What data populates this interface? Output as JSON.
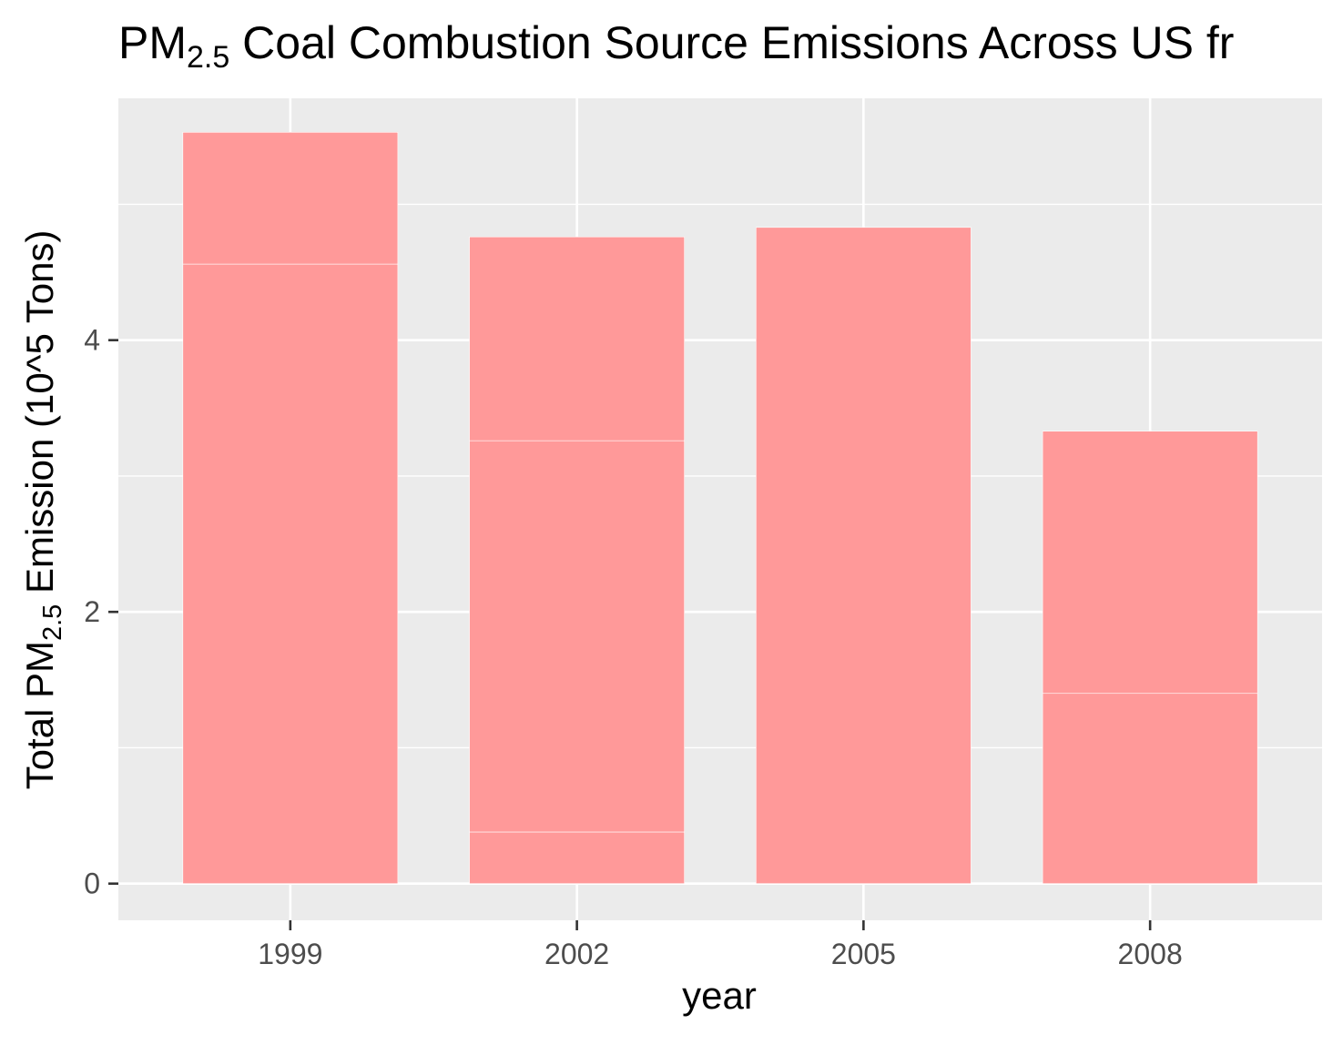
{
  "chart_data": {
    "type": "bar",
    "stacked": true,
    "title": {
      "prefix": "PM",
      "subscript": "2.5",
      "suffix": " Coal Combustion Source Emissions Across US fr"
    },
    "xlabel": "year",
    "ylabel": {
      "prefix": "Total PM",
      "subscript": "2.5",
      "suffix": " Emission (10^5 Tons)"
    },
    "categories": [
      "1999",
      "2002",
      "2005",
      "2008"
    ],
    "bar_color": "#ff9999",
    "panel_color": "#ebebeb",
    "grid": true,
    "ylim": [
      -0.27,
      5.78
    ],
    "y_ticks": [
      "0",
      "2",
      "4"
    ],
    "y_tick_values": [
      0,
      2,
      4
    ],
    "y_minor_tick_values": [
      1,
      3,
      5
    ],
    "stacks": [
      {
        "year": "1999",
        "segments": [
          4.56,
          0.97
        ]
      },
      {
        "year": "2002",
        "segments": [
          0.38,
          2.88,
          1.5
        ]
      },
      {
        "year": "2005",
        "segments": [
          4.83
        ]
      },
      {
        "year": "2008",
        "segments": [
          1.4,
          1.93
        ]
      }
    ],
    "totals": [
      5.53,
      4.76,
      4.83,
      3.33
    ]
  }
}
